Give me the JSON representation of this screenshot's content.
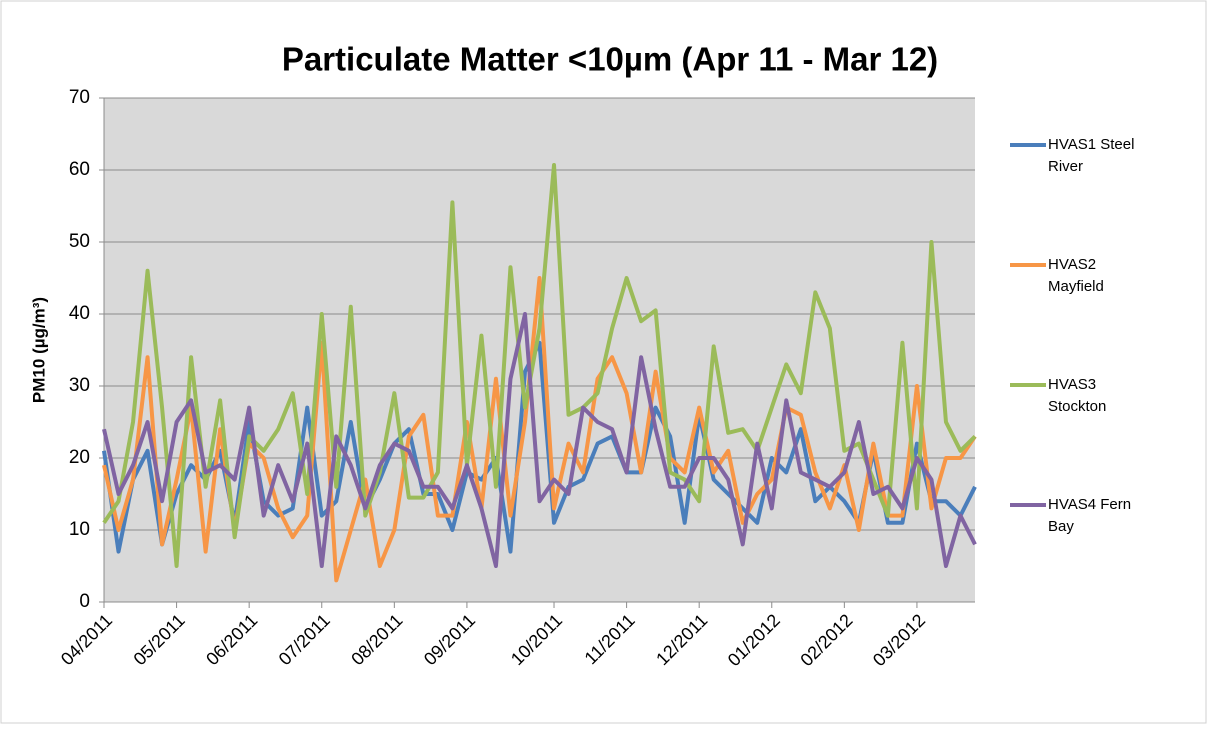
{
  "chart_data": {
    "type": "line",
    "title": "Particulate Matter <10µm (Apr 11 - Mar 12)",
    "y_label": "PM10 (µg/m³)",
    "categories": [
      "04/2011",
      null,
      null,
      null,
      null,
      "05/2011",
      null,
      null,
      null,
      null,
      "06/2011",
      null,
      null,
      null,
      null,
      "07/2011",
      null,
      null,
      null,
      null,
      "08/2011",
      null,
      null,
      null,
      null,
      "09/2011",
      null,
      null,
      null,
      null,
      null,
      "10/2011",
      null,
      null,
      null,
      null,
      "11/2011",
      null,
      null,
      null,
      null,
      "12/2011",
      null,
      null,
      null,
      null,
      "01/2012",
      null,
      null,
      null,
      null,
      "02/2012",
      null,
      null,
      null,
      null,
      "03/2012",
      null,
      null,
      null,
      null
    ],
    "series": [
      {
        "name": "HVAS1 Steel River",
        "color": "#4a7ebb",
        "values": [
          21,
          7,
          17,
          21,
          8,
          15,
          19,
          17,
          21,
          11,
          25,
          14,
          12,
          13,
          27,
          12,
          14,
          25,
          13,
          17,
          22,
          24,
          15,
          15,
          10,
          18,
          17,
          20,
          7,
          32,
          36,
          11,
          16,
          17,
          22,
          23,
          18,
          18,
          27,
          23,
          11,
          26,
          17,
          15,
          13,
          11,
          20,
          18,
          24,
          14,
          16,
          14,
          11,
          21,
          11,
          11,
          22,
          14,
          14,
          12,
          16
        ]
      },
      {
        "name": "HVAS2 Mayfield",
        "color": "#f79646",
        "values": [
          19,
          10,
          17,
          34,
          8,
          17,
          27,
          7,
          24,
          10,
          22,
          20,
          13,
          9,
          12,
          36,
          3,
          10,
          17,
          5,
          10,
          23,
          26,
          12,
          12,
          25,
          13,
          31,
          12,
          25,
          45,
          13,
          22,
          18,
          31,
          34,
          29,
          18,
          32,
          20,
          18,
          27,
          18,
          21,
          11,
          15,
          17,
          27,
          26,
          18,
          13,
          19,
          10,
          22,
          12,
          12,
          30,
          13,
          20,
          20,
          23
        ]
      },
      {
        "name": "HVAS3 Stockton",
        "color": "#9bbb59",
        "values": [
          11,
          14,
          25,
          46,
          27,
          5,
          34,
          16,
          28,
          9,
          23,
          21,
          24,
          29,
          15,
          40,
          16,
          41,
          12,
          18,
          29,
          14.5,
          14.5,
          18,
          55.5,
          19,
          37,
          16,
          46.5,
          27,
          38,
          60.7,
          26,
          27,
          29,
          38,
          45,
          39,
          40.5,
          18,
          17,
          14,
          35.5,
          23.5,
          24,
          21,
          27,
          33,
          29,
          43,
          38,
          21,
          22,
          17,
          12,
          36,
          13,
          50,
          25,
          21,
          23
        ]
      },
      {
        "name": "HVAS4 Fern Bay",
        "color": "#8064a2",
        "values": [
          24,
          15,
          19,
          25,
          14,
          25,
          28,
          18,
          19,
          17,
          27,
          12,
          19,
          14,
          22,
          5,
          23,
          19,
          13,
          19,
          22,
          21,
          16,
          16,
          13,
          19,
          13,
          5,
          31,
          40,
          14,
          17,
          15,
          27,
          25,
          24,
          18,
          34,
          24,
          16,
          16,
          20,
          20,
          17,
          8,
          22,
          13,
          28,
          18,
          17,
          16,
          18,
          25,
          15,
          16,
          13,
          20,
          17,
          5,
          12,
          8
        ]
      }
    ],
    "ylim": [
      0,
      70
    ],
    "yticks": [
      0,
      10,
      20,
      30,
      40,
      50,
      60,
      70
    ],
    "grid": true,
    "legend": "right"
  }
}
